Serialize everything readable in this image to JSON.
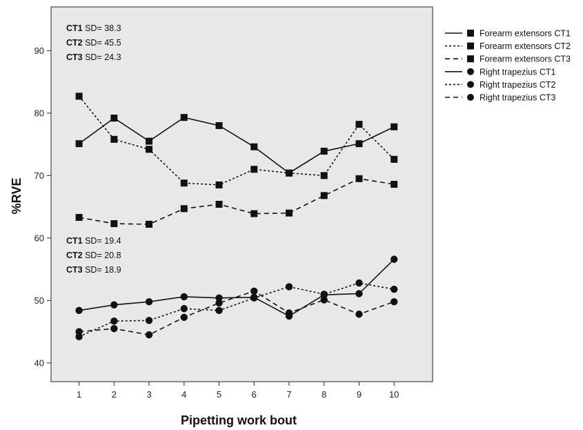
{
  "chart_data": {
    "type": "line",
    "xlabel": "Pipetting work bout",
    "ylabel": "%RVE",
    "x": [
      1,
      2,
      3,
      4,
      5,
      6,
      7,
      8,
      9,
      10
    ],
    "xlim": [
      0.2,
      11.1
    ],
    "ylim": [
      37,
      97
    ],
    "yticks": [
      40,
      50,
      60,
      70,
      80,
      90
    ],
    "grid": false,
    "legend_position": "right",
    "colors": {
      "plot_bg": "#e8e8e8",
      "line": "#111111"
    },
    "series": [
      {
        "name": "Forearm extensors CT1",
        "style": "solid",
        "marker": "square",
        "values": [
          75.1,
          79.2,
          75.5,
          79.3,
          78.0,
          74.6,
          70.4,
          73.9,
          75.1,
          77.8
        ]
      },
      {
        "name": "Forearm extensors CT2",
        "style": "dotted",
        "marker": "square",
        "values": [
          82.7,
          75.8,
          74.2,
          68.8,
          68.5,
          71.0,
          70.4,
          70.0,
          78.2,
          72.6
        ]
      },
      {
        "name": "Forearm extensors CT3",
        "style": "dashed",
        "marker": "square",
        "values": [
          63.3,
          62.3,
          62.2,
          64.7,
          65.4,
          63.9,
          64.0,
          66.8,
          69.5,
          68.6
        ]
      },
      {
        "name": "Right trapezius CT1",
        "style": "solid",
        "marker": "circle",
        "values": [
          48.4,
          49.3,
          49.8,
          50.6,
          50.4,
          50.5,
          47.5,
          50.9,
          51.1,
          56.6
        ]
      },
      {
        "name": "Right trapezius CT2",
        "style": "dotted",
        "marker": "circle",
        "values": [
          44.2,
          46.7,
          46.8,
          48.7,
          48.4,
          50.4,
          52.2,
          51.0,
          52.8,
          51.8
        ]
      },
      {
        "name": "Right trapezius CT3",
        "style": "dashed",
        "marker": "circle",
        "values": [
          45.0,
          45.5,
          44.5,
          47.3,
          49.6,
          51.5,
          48.0,
          50.1,
          47.8,
          49.8
        ]
      }
    ],
    "annotations": [
      {
        "group": "forearm",
        "lines": [
          {
            "bold": "CT1",
            "text": " SD= 38.3"
          },
          {
            "bold": "CT2",
            "text": " SD= 45.5"
          },
          {
            "bold": "CT3",
            "text": " SD= 24.3"
          }
        ]
      },
      {
        "group": "trapezius",
        "lines": [
          {
            "bold": "CT1",
            "text": " SD= 19.4"
          },
          {
            "bold": "CT2",
            "text": " SD= 20.8"
          },
          {
            "bold": "CT3",
            "text": " SD= 18.9"
          }
        ]
      }
    ]
  }
}
